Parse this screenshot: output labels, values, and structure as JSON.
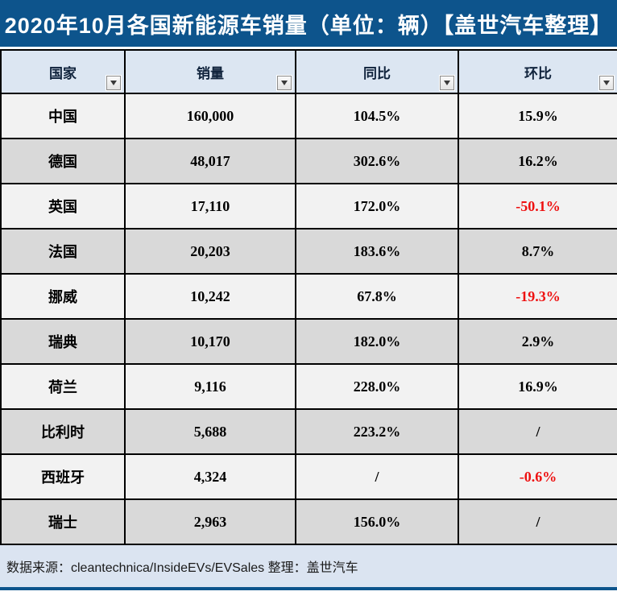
{
  "title": "2020年10月各国新能源车销量（单位：辆）【盖世汽车整理】",
  "table": {
    "columns": [
      {
        "label": "国家"
      },
      {
        "label": "销量"
      },
      {
        "label": "同比"
      },
      {
        "label": "环比"
      }
    ],
    "rows": [
      {
        "cells": [
          {
            "v": "中国"
          },
          {
            "v": "160,000"
          },
          {
            "v": "104.5%"
          },
          {
            "v": "15.9%"
          }
        ]
      },
      {
        "cells": [
          {
            "v": "德国"
          },
          {
            "v": "48,017"
          },
          {
            "v": "302.6%"
          },
          {
            "v": "16.2%"
          }
        ]
      },
      {
        "cells": [
          {
            "v": "英国"
          },
          {
            "v": "17,110"
          },
          {
            "v": "172.0%"
          },
          {
            "v": "-50.1%",
            "negative": true
          }
        ]
      },
      {
        "cells": [
          {
            "v": "法国"
          },
          {
            "v": "20,203"
          },
          {
            "v": "183.6%"
          },
          {
            "v": "8.7%"
          }
        ]
      },
      {
        "cells": [
          {
            "v": "挪威"
          },
          {
            "v": "10,242"
          },
          {
            "v": "67.8%"
          },
          {
            "v": "-19.3%",
            "negative": true
          }
        ]
      },
      {
        "cells": [
          {
            "v": "瑞典"
          },
          {
            "v": "10,170"
          },
          {
            "v": "182.0%"
          },
          {
            "v": "2.9%"
          }
        ]
      },
      {
        "cells": [
          {
            "v": "荷兰"
          },
          {
            "v": "9,116"
          },
          {
            "v": "228.0%"
          },
          {
            "v": "16.9%"
          }
        ]
      },
      {
        "cells": [
          {
            "v": "比利时"
          },
          {
            "v": "5,688"
          },
          {
            "v": "223.2%"
          },
          {
            "v": "/"
          }
        ]
      },
      {
        "cells": [
          {
            "v": "西班牙"
          },
          {
            "v": "4,324"
          },
          {
            "v": "/"
          },
          {
            "v": "-0.6%",
            "negative": true
          }
        ]
      },
      {
        "cells": [
          {
            "v": "瑞士"
          },
          {
            "v": "2,963"
          },
          {
            "v": "156.0%"
          },
          {
            "v": "/"
          }
        ]
      }
    ]
  },
  "footer": {
    "source_text": "数据来源：cleantechnica/InsideEVs/EVSales 整理：盖世汽车"
  },
  "icons": {
    "filter_dropdown": "filter-dropdown-arrow-icon"
  },
  "colors": {
    "title_bg": "#0D548C",
    "header_bg": "#DCE6F2",
    "row_light": "#F2F2F2",
    "row_dark": "#D9D9D9",
    "footer_bg": "#DBE4F1",
    "negative_text": "#EE1111",
    "border": "#000000",
    "header_text": "#10233C",
    "title_text": "#FFFFFF"
  }
}
